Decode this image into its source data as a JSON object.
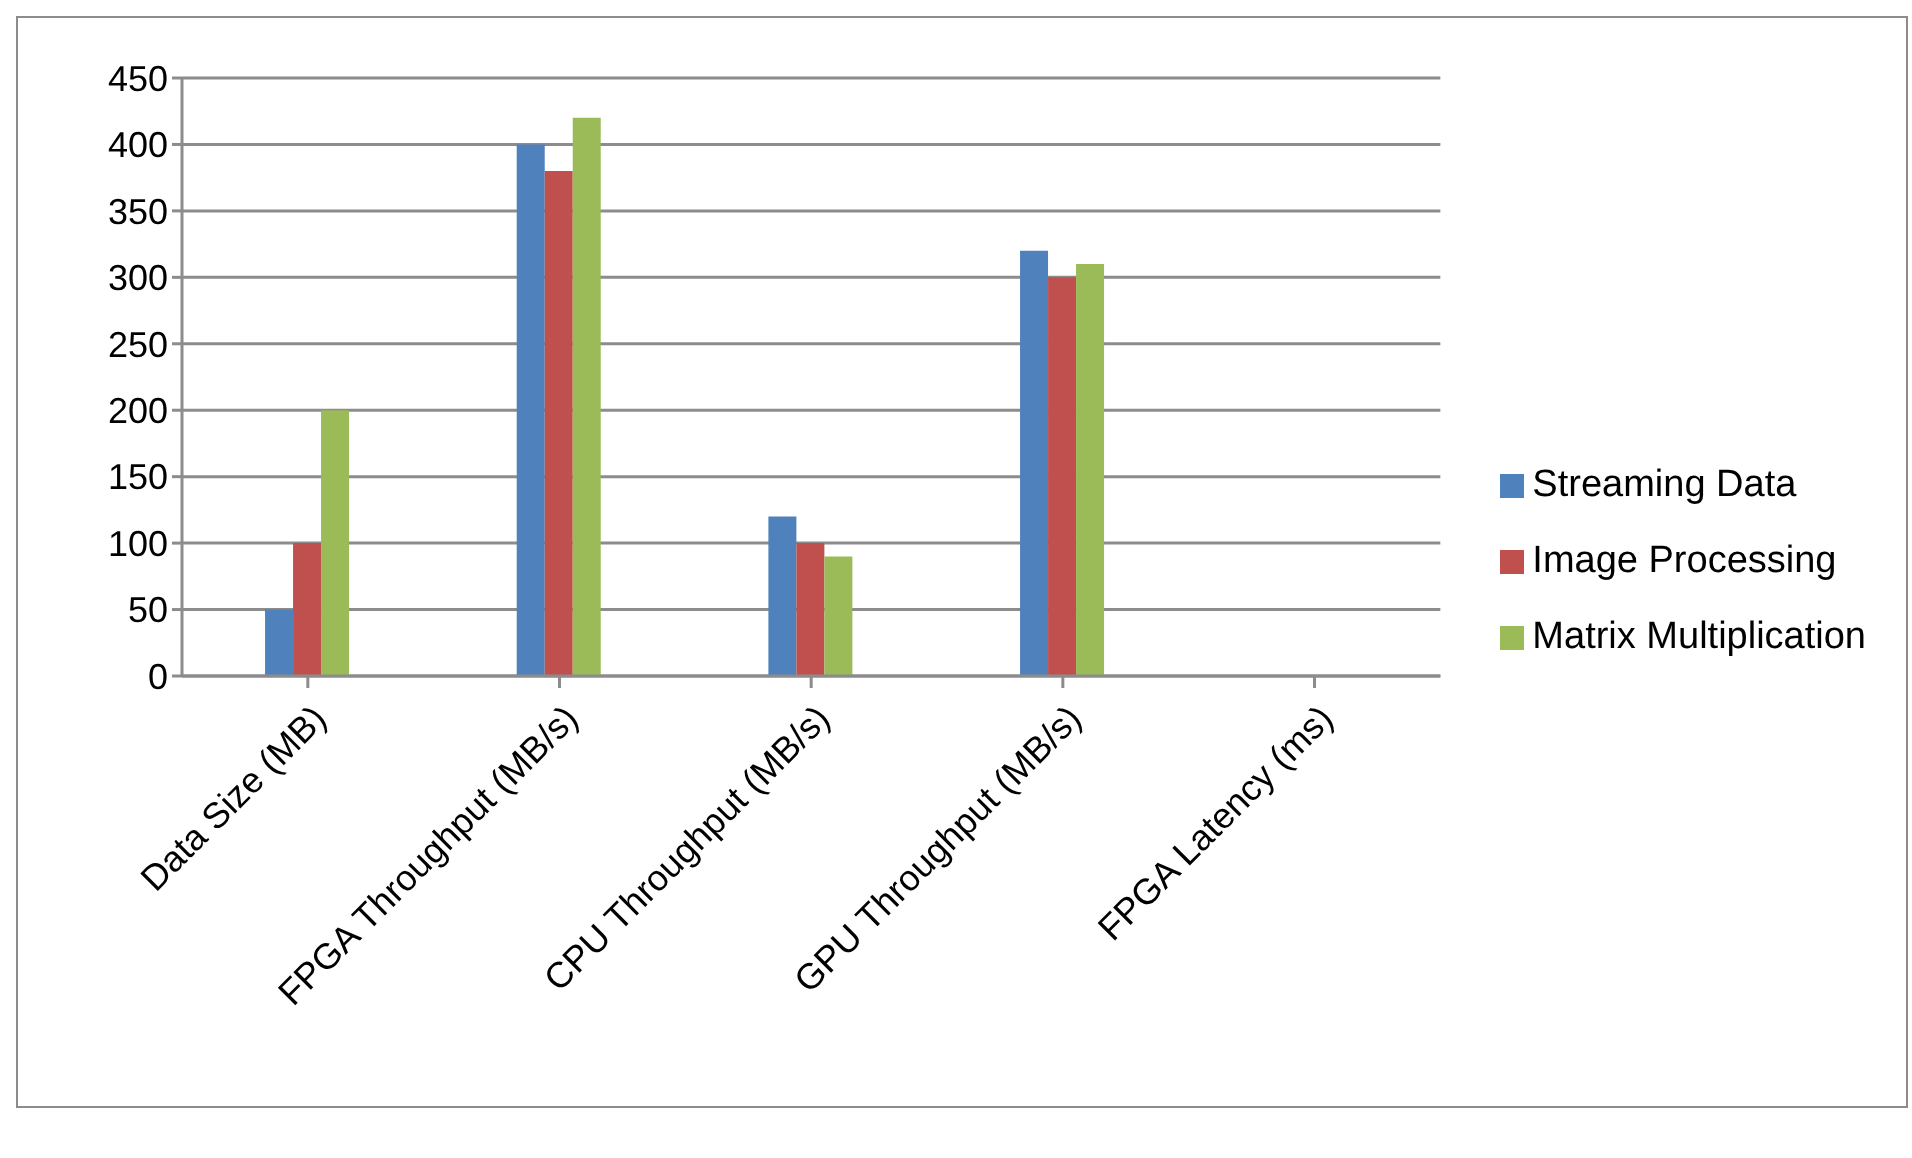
{
  "chart_data": {
    "type": "bar",
    "categories": [
      "Data Size (MB)",
      "FPGA Throughput (MB/s)",
      "CPU Throughput (MB/s)",
      "GPU Throughput (MB/s)",
      "FPGA Latency (ms)"
    ],
    "series": [
      {
        "name": "Streaming Data",
        "color": "#4f81bd",
        "values": [
          50,
          400,
          120,
          320,
          0
        ]
      },
      {
        "name": "Image Processing",
        "color": "#c0504d",
        "values": [
          100,
          380,
          100,
          300,
          0
        ]
      },
      {
        "name": "Matrix Multiplication",
        "color": "#9bbb59",
        "values": [
          200,
          420,
          90,
          310,
          0
        ]
      }
    ],
    "ylim": [
      0,
      450
    ],
    "yticks": [
      0,
      50,
      100,
      150,
      200,
      250,
      300,
      350,
      400,
      450
    ],
    "grid": "y",
    "legend": "right"
  }
}
